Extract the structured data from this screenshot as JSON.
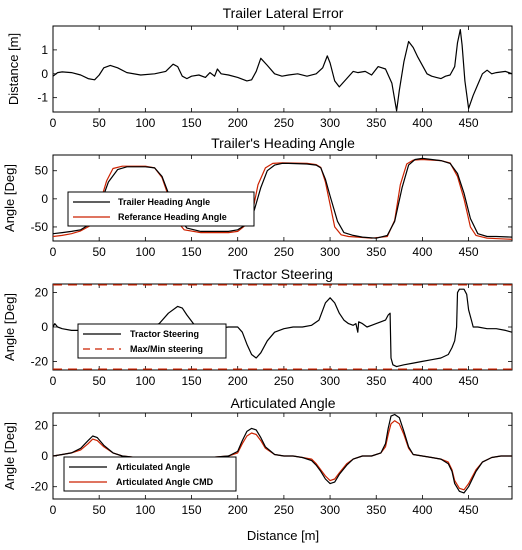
{
  "figure": {
    "xlabel": "Distance [m]"
  },
  "chart_data": [
    {
      "type": "line",
      "title": "Trailer Lateral Error",
      "xlabel": "",
      "ylabel": "Distance [m]",
      "xlim": [
        0,
        497
      ],
      "ylim": [
        -1.6,
        2.0
      ],
      "xticks": [
        0,
        50,
        100,
        150,
        200,
        250,
        300,
        350,
        400,
        450
      ],
      "yticks": [
        -1,
        0,
        1
      ],
      "grid": false,
      "legend": null,
      "series": [
        {
          "name": "",
          "color": "#000000",
          "dash": "",
          "x": [
            0,
            5,
            10,
            20,
            30,
            38,
            45,
            50,
            55,
            62,
            70,
            80,
            95,
            110,
            122,
            130,
            135,
            140,
            145,
            150,
            158,
            165,
            170,
            175,
            178,
            182,
            190,
            200,
            210,
            215,
            220,
            225,
            232,
            240,
            248,
            255,
            265,
            275,
            285,
            292,
            297,
            300,
            305,
            310,
            318,
            325,
            330,
            338,
            345,
            352,
            360,
            367,
            372,
            375,
            380,
            385,
            390,
            395,
            400,
            405,
            410,
            415,
            420,
            425,
            430,
            435,
            438,
            441,
            443,
            446,
            450,
            455,
            460,
            465,
            470,
            475,
            480,
            490,
            497
          ],
          "y": [
            -0.1,
            0.05,
            0.08,
            0.05,
            -0.05,
            -0.2,
            -0.25,
            -0.05,
            0.25,
            0.35,
            0.25,
            0.05,
            -0.05,
            0.0,
            0.1,
            0.4,
            0.3,
            -0.1,
            -0.2,
            -0.1,
            -0.05,
            -0.15,
            0.05,
            -0.1,
            0.2,
            0.0,
            -0.05,
            -0.15,
            -0.3,
            -0.25,
            0.1,
            0.65,
            0.35,
            0.0,
            -0.1,
            -0.05,
            0.0,
            -0.1,
            0.0,
            0.25,
            0.75,
            0.45,
            -0.3,
            -0.55,
            -0.2,
            0.1,
            0.05,
            0.1,
            -0.05,
            0.3,
            0.2,
            -0.4,
            -1.55,
            -0.7,
            0.5,
            1.35,
            1.1,
            0.7,
            0.35,
            0.0,
            -0.1,
            -0.15,
            -0.2,
            -0.1,
            -0.05,
            0.3,
            1.3,
            1.85,
            1.2,
            -0.3,
            -1.45,
            -0.9,
            -0.45,
            0.0,
            0.15,
            0.0,
            0.05,
            0.1,
            0.0
          ]
        }
      ]
    },
    {
      "type": "line",
      "title": "Trailer's Heading Angle",
      "xlabel": "",
      "ylabel": "Angle [Deg]",
      "xlim": [
        0,
        497
      ],
      "ylim": [
        -75,
        78
      ],
      "xticks": [
        0,
        50,
        100,
        150,
        200,
        250,
        300,
        350,
        400,
        450
      ],
      "yticks": [
        -50,
        0,
        50
      ],
      "grid": false,
      "legend": "bottom-left",
      "series": [
        {
          "name": "Trailer Heading Angle",
          "color": "#000000",
          "dash": "",
          "x": [
            0,
            10,
            20,
            30,
            40,
            50,
            60,
            70,
            80,
            100,
            110,
            118,
            125,
            135,
            145,
            160,
            175,
            190,
            200,
            210,
            218,
            225,
            232,
            240,
            248,
            255,
            275,
            285,
            290,
            295,
            300,
            308,
            315,
            325,
            335,
            350,
            362,
            370,
            378,
            385,
            392,
            400,
            410,
            420,
            430,
            438,
            445,
            452,
            460,
            470,
            480,
            497
          ],
          "y": [
            -62,
            -60,
            -58,
            -55,
            -45,
            -15,
            30,
            52,
            57,
            57,
            55,
            40,
            10,
            -30,
            -52,
            -58,
            -58,
            -58,
            -55,
            -45,
            -20,
            20,
            50,
            60,
            63,
            63,
            62,
            60,
            55,
            35,
            5,
            -40,
            -60,
            -65,
            -68,
            -70,
            -65,
            -40,
            20,
            60,
            70,
            72,
            70,
            68,
            63,
            45,
            10,
            -35,
            -62,
            -67,
            -67,
            -68
          ]
        },
        {
          "name": "Referance Heading Angle",
          "color": "#cc2200",
          "dash": "",
          "x": [
            0,
            10,
            20,
            30,
            40,
            50,
            58,
            65,
            75,
            100,
            110,
            118,
            125,
            132,
            142,
            160,
            175,
            190,
            200,
            210,
            217,
            222,
            230,
            238,
            248,
            275,
            285,
            290,
            295,
            300,
            305,
            312,
            320,
            330,
            345,
            362,
            370,
            376,
            383,
            390,
            400,
            420,
            430,
            438,
            445,
            452,
            458,
            470,
            497
          ],
          "y": [
            -67,
            -65,
            -62,
            -57,
            -48,
            -12,
            32,
            54,
            58,
            58,
            55,
            38,
            5,
            -35,
            -55,
            -60,
            -60,
            -60,
            -58,
            -45,
            -15,
            25,
            55,
            63,
            64,
            63,
            61,
            56,
            30,
            -10,
            -50,
            -64,
            -67,
            -68,
            -70,
            -67,
            -38,
            25,
            62,
            69,
            70,
            68,
            64,
            40,
            0,
            -50,
            -65,
            -70,
            -72
          ]
        }
      ]
    },
    {
      "type": "line",
      "title": "Tractor Steering",
      "xlabel": "",
      "ylabel": "Angle [Deg]",
      "xlim": [
        0,
        497
      ],
      "ylim": [
        -25,
        25
      ],
      "xticks": [
        0,
        50,
        100,
        150,
        200,
        250,
        300,
        350,
        400,
        450
      ],
      "yticks": [
        -20,
        0,
        20
      ],
      "grid": false,
      "legend": "bottom-left",
      "series": [
        {
          "name": "Tractor Steering",
          "color": "#000000",
          "dash": "",
          "x": [
            0,
            2,
            5,
            10,
            20,
            40,
            60,
            80,
            100,
            115,
            125,
            135,
            140,
            145,
            152,
            158,
            165,
            175,
            190,
            200,
            205,
            210,
            215,
            220,
            225,
            232,
            240,
            250,
            260,
            270,
            280,
            288,
            295,
            300,
            305,
            310,
            315,
            320,
            325,
            328,
            330,
            331,
            335,
            340,
            345,
            350,
            355,
            360,
            363,
            365,
            366,
            368,
            372,
            380,
            390,
            400,
            410,
            420,
            428,
            432,
            435,
            437,
            438,
            440,
            445,
            448,
            450,
            453,
            455,
            460,
            470,
            480,
            490,
            497
          ],
          "y": [
            0,
            2,
            0,
            -1,
            -2,
            -2,
            -2,
            -1,
            -1,
            2,
            8,
            12,
            11,
            7,
            2,
            -1,
            -2,
            -1,
            0,
            0,
            -3,
            -10,
            -16,
            -18,
            -15,
            -8,
            -3,
            -1,
            0,
            0,
            1,
            4,
            14,
            17,
            14,
            8,
            4,
            2,
            1,
            2,
            -3,
            3,
            2,
            0,
            1,
            2,
            3,
            4,
            7,
            8,
            -18,
            -22,
            -23,
            -22,
            -21,
            -20,
            -19,
            -18,
            -16,
            -12,
            -8,
            0,
            20,
            22,
            22,
            19,
            10,
            4,
            0,
            0,
            -1,
            -1,
            -2,
            -3
          ]
        },
        {
          "name": "Max/Min steering",
          "color": "#cc2200",
          "dash": "9 6",
          "x": [
            0,
            497
          ],
          "y": [
            24.5,
            24.5
          ]
        },
        {
          "name": "",
          "color": "#cc2200",
          "dash": "9 6",
          "x": [
            0,
            497
          ],
          "y": [
            -24.5,
            -24.5
          ]
        }
      ]
    },
    {
      "type": "line",
      "title": "Articulated Angle",
      "xlabel": "Distance [m]",
      "ylabel": "Angle [Deg]",
      "xlim": [
        0,
        497
      ],
      "ylim": [
        -28,
        28
      ],
      "xticks": [
        0,
        50,
        100,
        150,
        200,
        250,
        300,
        350,
        400,
        450
      ],
      "yticks": [
        -20,
        0,
        20
      ],
      "grid": false,
      "legend": "bottom-left",
      "series": [
        {
          "name": "Articulated Angle",
          "color": "#000000",
          "dash": "",
          "x": [
            0,
            10,
            20,
            30,
            38,
            43,
            48,
            55,
            65,
            75,
            90,
            110,
            130,
            150,
            170,
            190,
            200,
            205,
            210,
            215,
            220,
            225,
            230,
            240,
            250,
            260,
            270,
            280,
            285,
            290,
            295,
            300,
            305,
            310,
            318,
            325,
            335,
            345,
            355,
            360,
            363,
            366,
            370,
            375,
            380,
            385,
            390,
            400,
            410,
            420,
            428,
            432,
            435,
            440,
            445,
            450,
            458,
            465,
            475,
            485,
            497
          ],
          "y": [
            0,
            1,
            2,
            5,
            10,
            13,
            12,
            7,
            2,
            0,
            -1,
            -1,
            -1,
            -1,
            -1,
            0,
            3,
            10,
            16,
            18,
            17,
            12,
            6,
            1,
            0,
            0,
            -1,
            -3,
            -6,
            -10,
            -15,
            -18,
            -17,
            -12,
            -6,
            -2,
            0,
            0,
            2,
            8,
            18,
            26,
            27,
            25,
            16,
            6,
            1,
            0,
            -1,
            -2,
            -5,
            -10,
            -18,
            -23,
            -24,
            -20,
            -10,
            -4,
            -1,
            0,
            0
          ]
        },
        {
          "name": "Articulated Angle CMD",
          "color": "#cc2200",
          "dash": "",
          "x": [
            0,
            10,
            20,
            30,
            38,
            43,
            48,
            55,
            65,
            75,
            90,
            110,
            130,
            150,
            170,
            190,
            200,
            205,
            210,
            215,
            220,
            225,
            230,
            240,
            250,
            260,
            270,
            280,
            285,
            290,
            295,
            300,
            305,
            310,
            318,
            325,
            335,
            345,
            355,
            360,
            363,
            366,
            370,
            375,
            380,
            385,
            390,
            400,
            410,
            420,
            428,
            432,
            435,
            440,
            445,
            450,
            458,
            465,
            475,
            485,
            497
          ],
          "y": [
            0,
            1,
            2,
            4,
            8,
            11,
            10,
            6,
            2,
            0,
            -1,
            -1,
            -1,
            -1,
            -1,
            0,
            2,
            8,
            13,
            15,
            14,
            10,
            5,
            1,
            0,
            0,
            -1,
            -2,
            -5,
            -9,
            -13,
            -16,
            -15,
            -11,
            -5,
            -2,
            0,
            0,
            2,
            6,
            14,
            21,
            23,
            21,
            14,
            5,
            1,
            0,
            -1,
            -2,
            -4,
            -9,
            -16,
            -21,
            -22,
            -18,
            -9,
            -4,
            -1,
            0,
            0
          ]
        }
      ]
    }
  ]
}
